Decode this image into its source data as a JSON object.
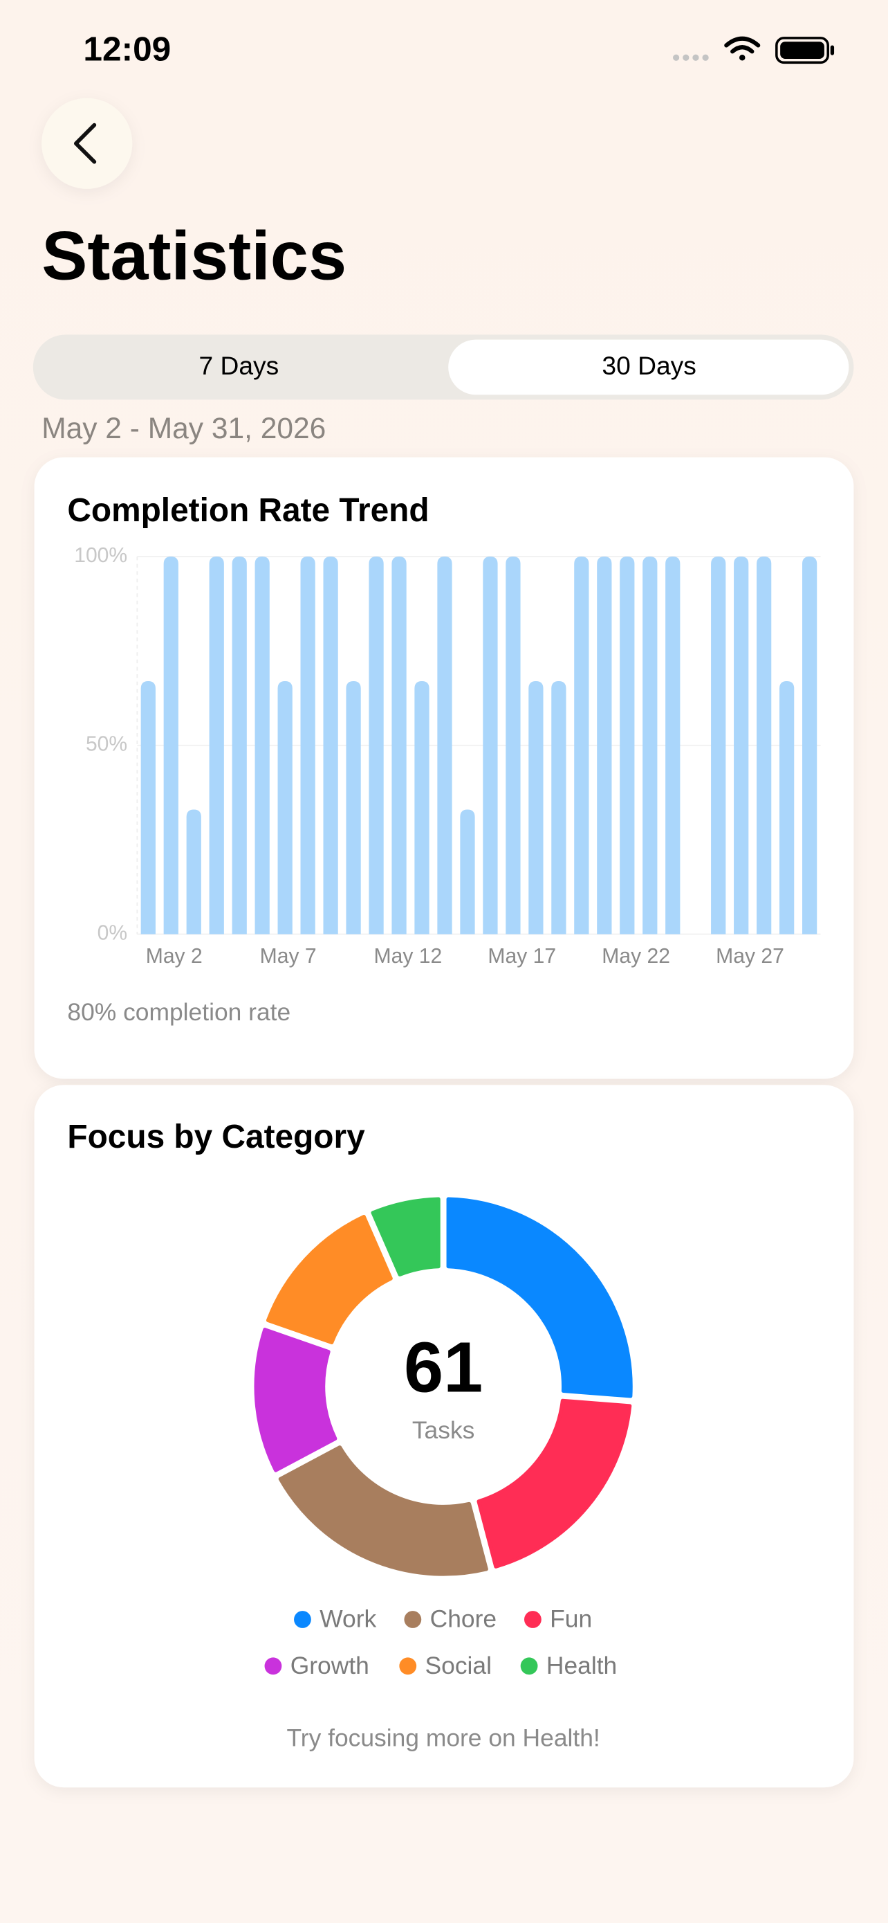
{
  "status_bar": {
    "time": "12:09"
  },
  "header": {
    "title": "Statistics"
  },
  "segmented": {
    "options": [
      "7 Days",
      "30 Days"
    ],
    "selected": 1
  },
  "date_range": "May 2 - May 31, 2026",
  "chart_data": [
    {
      "type": "bar",
      "title": "Completion Rate Trend",
      "categories": [
        "May 2",
        null,
        null,
        null,
        null,
        "May 7",
        null,
        null,
        null,
        null,
        "May 12",
        null,
        null,
        null,
        null,
        "May 17",
        null,
        null,
        null,
        null,
        "May 22",
        null,
        null,
        null,
        null,
        "May 27",
        null,
        null,
        null,
        null
      ],
      "values": [
        67,
        100,
        33,
        100,
        100,
        100,
        67,
        100,
        100,
        67,
        100,
        100,
        67,
        100,
        33,
        100,
        100,
        67,
        67,
        100,
        100,
        100,
        100,
        100,
        0,
        100,
        100,
        100,
        67,
        100
      ],
      "color": "#aad6fb",
      "ylim": [
        0,
        100
      ],
      "yticks": [
        {
          "value": 0,
          "label": "0%"
        },
        {
          "value": 50,
          "label": "50%"
        },
        {
          "value": 100,
          "label": "100%"
        }
      ],
      "grid": true,
      "footnote": "80% completion rate"
    },
    {
      "type": "donut",
      "title": "Focus by Category",
      "categories": [
        "Work",
        "Fun",
        "Chore",
        "Growth",
        "Social",
        "Health"
      ],
      "values": [
        16,
        12,
        13,
        8,
        8,
        4
      ],
      "colors": [
        "#0a88ff",
        "#ff2d55",
        "#a87e5e",
        "#c932dc",
        "#ff8c26",
        "#34c759"
      ],
      "total": 61,
      "center_label": "Tasks",
      "note": "Try focusing more on Health!"
    }
  ]
}
